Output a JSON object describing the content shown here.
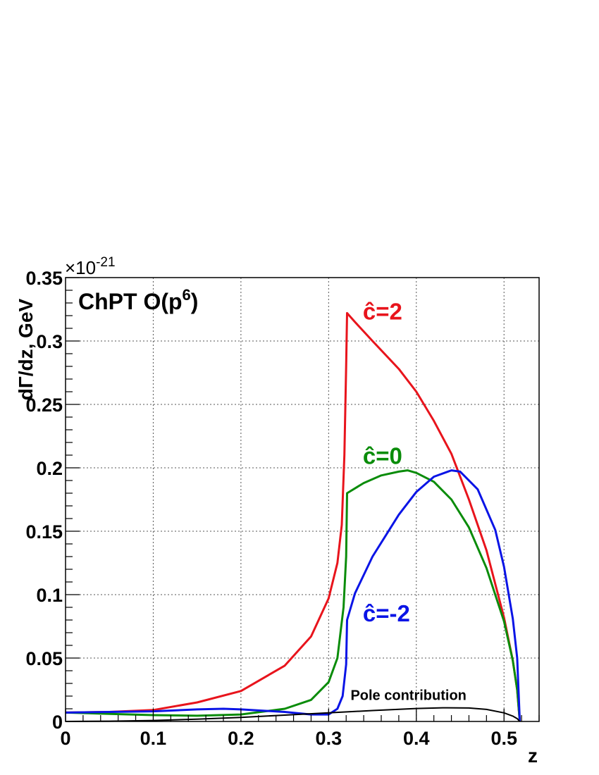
{
  "chart_data": {
    "type": "line",
    "title": "ChPT O(p",
    "title_superscript": "6",
    "title_suffix": ")",
    "xlabel": "z",
    "ylabel": "dΓ/dz, GeV",
    "y_multiplier_base": "×10",
    "y_multiplier_exp": "-21",
    "xlim": [
      0,
      0.54
    ],
    "ylim": [
      0,
      0.35
    ],
    "grid": true,
    "x_ticks": [
      {
        "value": 0,
        "label": "0"
      },
      {
        "value": 0.1,
        "label": "0.1"
      },
      {
        "value": 0.2,
        "label": "0.2"
      },
      {
        "value": 0.3,
        "label": "0.3"
      },
      {
        "value": 0.4,
        "label": "0.4"
      },
      {
        "value": 0.5,
        "label": "0.5"
      }
    ],
    "y_ticks": [
      {
        "value": 0,
        "label": "0"
      },
      {
        "value": 0.05,
        "label": "0.05"
      },
      {
        "value": 0.1,
        "label": "0.1"
      },
      {
        "value": 0.15,
        "label": "0.15"
      },
      {
        "value": 0.2,
        "label": "0.2"
      },
      {
        "value": 0.25,
        "label": "0.25"
      },
      {
        "value": 0.3,
        "label": "0.3"
      },
      {
        "value": 0.35,
        "label": "0.35"
      }
    ],
    "series": [
      {
        "label": "ĉ=2",
        "color": "#e8141c",
        "label_pos": {
          "x": 0.339,
          "y": 0.317
        },
        "x": [
          0,
          0.05,
          0.1,
          0.15,
          0.2,
          0.25,
          0.28,
          0.3,
          0.31,
          0.315,
          0.318,
          0.32,
          0.321,
          0.33,
          0.35,
          0.38,
          0.4,
          0.42,
          0.44,
          0.46,
          0.48,
          0.5,
          0.51,
          0.515,
          0.518
        ],
        "y": [
          0.007,
          0.0075,
          0.009,
          0.015,
          0.024,
          0.044,
          0.067,
          0.097,
          0.125,
          0.155,
          0.21,
          0.28,
          0.322,
          0.315,
          0.3,
          0.278,
          0.26,
          0.237,
          0.211,
          0.175,
          0.135,
          0.082,
          0.048,
          0.025,
          0.0
        ]
      },
      {
        "label": "ĉ=0",
        "color": "#0a8c0a",
        "label_pos": {
          "x": 0.339,
          "y": 0.203
        },
        "x": [
          0,
          0.05,
          0.1,
          0.15,
          0.2,
          0.25,
          0.28,
          0.3,
          0.31,
          0.317,
          0.32,
          0.321,
          0.34,
          0.36,
          0.38,
          0.39,
          0.4,
          0.42,
          0.44,
          0.46,
          0.48,
          0.5,
          0.51,
          0.515,
          0.518
        ],
        "y": [
          0.007,
          0.006,
          0.005,
          0.0045,
          0.0055,
          0.01,
          0.017,
          0.031,
          0.05,
          0.09,
          0.13,
          0.18,
          0.188,
          0.194,
          0.197,
          0.198,
          0.196,
          0.189,
          0.175,
          0.153,
          0.121,
          0.079,
          0.048,
          0.025,
          0.0
        ]
      },
      {
        "label": "ĉ=-2",
        "color": "#0a14e6",
        "label_pos": {
          "x": 0.339,
          "y": 0.079
        },
        "x": [
          0,
          0.05,
          0.1,
          0.15,
          0.18,
          0.2,
          0.25,
          0.28,
          0.3,
          0.31,
          0.316,
          0.32,
          0.321,
          0.33,
          0.35,
          0.38,
          0.4,
          0.42,
          0.44,
          0.45,
          0.47,
          0.49,
          0.5,
          0.51,
          0.515,
          0.518
        ],
        "y": [
          0.007,
          0.0075,
          0.008,
          0.0095,
          0.01,
          0.0095,
          0.0075,
          0.0055,
          0.0055,
          0.01,
          0.02,
          0.045,
          0.08,
          0.101,
          0.13,
          0.163,
          0.181,
          0.193,
          0.198,
          0.197,
          0.183,
          0.151,
          0.122,
          0.081,
          0.05,
          0.0
        ]
      },
      {
        "label": "Pole contribution",
        "color": "#000000",
        "label_pos": {
          "x": 0.325,
          "y": 0.017
        },
        "x": [
          0,
          0.05,
          0.1,
          0.15,
          0.2,
          0.25,
          0.3,
          0.35,
          0.4,
          0.43,
          0.46,
          0.48,
          0.5,
          0.51,
          0.515,
          0.518
        ],
        "y": [
          0.0,
          0.0002,
          0.0008,
          0.0018,
          0.0032,
          0.005,
          0.0068,
          0.0086,
          0.0102,
          0.0108,
          0.0106,
          0.0095,
          0.0068,
          0.0042,
          0.0022,
          0.0
        ]
      }
    ]
  }
}
